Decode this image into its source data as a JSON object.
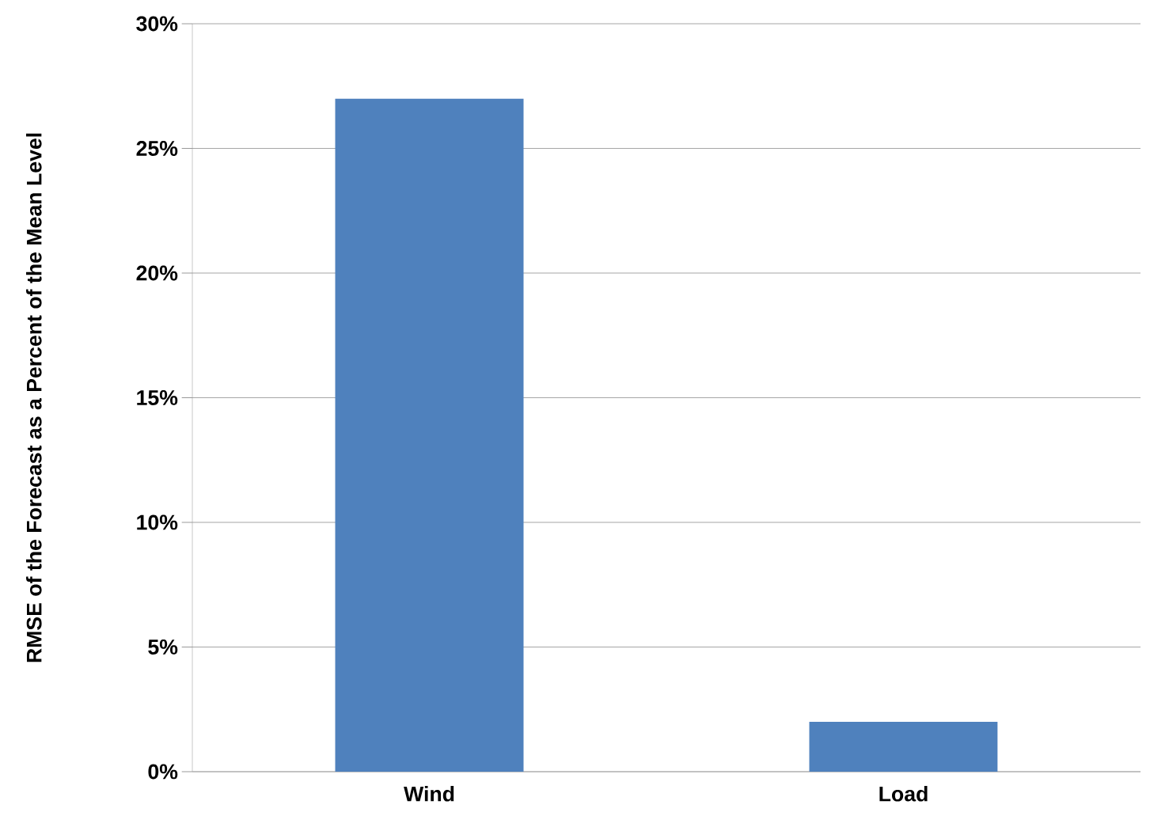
{
  "chart_data": {
    "type": "bar",
    "ylabel": "RMSE of the Forecast as a Percent of the Mean Level",
    "categories": [
      "Wind",
      "Load"
    ],
    "values": [
      27,
      2
    ],
    "color": "#4f81bd",
    "ylim": [
      0,
      30
    ],
    "yticks": [
      {
        "value": 0,
        "label": "0%"
      },
      {
        "value": 5,
        "label": "5%"
      },
      {
        "value": 10,
        "label": "10%"
      },
      {
        "value": 15,
        "label": "15%"
      },
      {
        "value": 20,
        "label": "20%"
      },
      {
        "value": 25,
        "label": "25%"
      },
      {
        "value": 30,
        "label": "30%"
      }
    ],
    "grid": "y"
  }
}
